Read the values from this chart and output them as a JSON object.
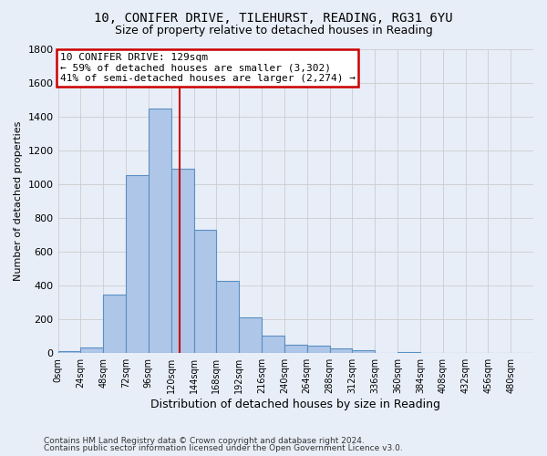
{
  "title_line1": "10, CONIFER DRIVE, TILEHURST, READING, RG31 6YU",
  "title_line2": "Size of property relative to detached houses in Reading",
  "xlabel": "Distribution of detached houses by size in Reading",
  "ylabel": "Number of detached properties",
  "footnote1": "Contains HM Land Registry data © Crown copyright and database right 2024.",
  "footnote2": "Contains public sector information licensed under the Open Government Licence v3.0.",
  "bar_labels": [
    "0sqm",
    "24sqm",
    "48sqm",
    "72sqm",
    "96sqm",
    "120sqm",
    "144sqm",
    "168sqm",
    "192sqm",
    "216sqm",
    "240sqm",
    "264sqm",
    "288sqm",
    "312sqm",
    "336sqm",
    "360sqm",
    "384sqm",
    "408sqm",
    "432sqm",
    "456sqm",
    "480sqm"
  ],
  "bar_values": [
    10,
    35,
    350,
    1055,
    1450,
    1095,
    730,
    430,
    215,
    105,
    50,
    45,
    30,
    20,
    0,
    5,
    0,
    0,
    0,
    0,
    0
  ],
  "bar_color": "#aec6e8",
  "bar_edge_color": "#5a8fc2",
  "ylim": [
    0,
    1800
  ],
  "yticks": [
    0,
    200,
    400,
    600,
    800,
    1000,
    1200,
    1400,
    1600,
    1800
  ],
  "bin_width": 24,
  "property_sqm": 129,
  "annotation_line1": "10 CONIFER DRIVE: 129sqm",
  "annotation_line2": "← 59% of detached houses are smaller (3,302)",
  "annotation_line3": "41% of semi-detached houses are larger (2,274) →",
  "annotation_box_color": "#ffffff",
  "annotation_border_color": "#cc0000",
  "grid_color": "#cccccc",
  "bg_color": "#e8eef8",
  "property_line_color": "#cc0000"
}
